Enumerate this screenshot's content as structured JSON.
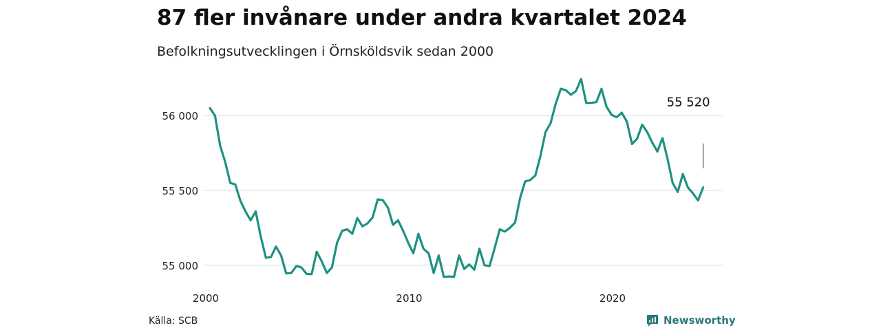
{
  "title": "87 fler invånare under andra kvartalet 2024",
  "subtitle": "Befolkningsutvecklingen i Örnsköldsvik sedan 2000",
  "source": "Källa: SCB",
  "brand": {
    "name": "Newsworthy",
    "icon": "newsworthy-logo-icon",
    "color": "#2b7a78"
  },
  "chart_data": {
    "type": "line",
    "title": "87 fler invånare under andra kvartalet 2024",
    "subtitle": "Befolkningsutvecklingen i Örnsköldsvik sedan 2000",
    "xlabel": "",
    "ylabel": "",
    "xlim": [
      2000,
      2024.5
    ],
    "ylim": [
      54930,
      56240
    ],
    "x_ticks": [
      {
        "value": 2000,
        "label": "2000"
      },
      {
        "value": 2010,
        "label": "2010"
      },
      {
        "value": 2020,
        "label": "2020"
      }
    ],
    "y_ticks": [
      {
        "value": 55000,
        "label": "55 000"
      },
      {
        "value": 55500,
        "label": "55 500"
      },
      {
        "value": 56000,
        "label": "56 000"
      }
    ],
    "grid": true,
    "line_color": "#1e9182",
    "series": [
      {
        "x": [
          2000.0,
          2000.25,
          2000.5,
          2000.75,
          2001.0,
          2001.25,
          2001.5,
          2001.75,
          2002.0,
          2002.25,
          2002.5,
          2002.75,
          2003.0,
          2003.25,
          2003.5,
          2003.75,
          2004.0,
          2004.25,
          2004.5,
          2004.75,
          2005.0,
          2005.25,
          2005.5,
          2005.75,
          2006.0,
          2006.25,
          2006.5,
          2006.75,
          2007.0,
          2007.25,
          2007.5,
          2007.75,
          2008.0,
          2008.25,
          2008.5,
          2008.75,
          2009.0,
          2009.25,
          2009.5,
          2009.75,
          2010.0,
          2010.25,
          2010.5,
          2010.75,
          2011.0,
          2011.25,
          2011.5,
          2011.75,
          2012.0,
          2012.25,
          2012.5,
          2012.75,
          2013.0,
          2013.25,
          2013.5,
          2013.75,
          2014.0,
          2014.25,
          2014.5,
          2014.75,
          2015.0,
          2015.25,
          2015.5,
          2015.75,
          2016.0,
          2016.25,
          2016.5,
          2016.75,
          2017.0,
          2017.25,
          2017.5,
          2017.75,
          2018.0,
          2018.25,
          2018.5,
          2018.75,
          2019.0,
          2019.25,
          2019.5,
          2019.75,
          2020.0,
          2020.25,
          2020.5,
          2020.75,
          2021.0,
          2021.25,
          2021.5,
          2021.75,
          2022.0,
          2022.25,
          2022.5,
          2022.75,
          2023.0,
          2023.25,
          2023.5,
          2023.75,
          2024.0,
          2024.25
        ],
        "values": [
          56050,
          56000,
          55800,
          55690,
          55550,
          55540,
          55430,
          55360,
          55300,
          55360,
          55190,
          55050,
          55055,
          55125,
          55065,
          54945,
          54948,
          54995,
          54985,
          54942,
          54940,
          55090,
          55025,
          54948,
          54985,
          55150,
          55230,
          55240,
          55210,
          55315,
          55260,
          55280,
          55320,
          55440,
          55435,
          55385,
          55270,
          55300,
          55230,
          55150,
          55080,
          55210,
          55110,
          55080,
          54948,
          55065,
          54922,
          54925,
          54922,
          55065,
          54975,
          55005,
          54970,
          55110,
          55000,
          54995,
          55115,
          55240,
          55225,
          55250,
          55285,
          55450,
          55560,
          55570,
          55600,
          55730,
          55890,
          55950,
          56080,
          56180,
          56170,
          56140,
          56165,
          56245,
          56085,
          56085,
          56090,
          56180,
          56060,
          56005,
          55990,
          56020,
          55960,
          55810,
          55845,
          55940,
          55890,
          55820,
          55760,
          55850,
          55710,
          55550,
          55490,
          55610,
          55520,
          55480,
          55433,
          55520
        ]
      }
    ],
    "annotations": [
      {
        "text": "55 520",
        "x": 2024.25,
        "y": 55520
      }
    ]
  }
}
